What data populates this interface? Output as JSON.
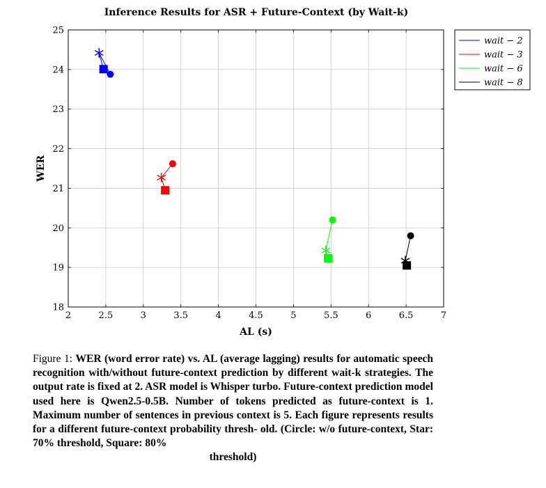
{
  "chart_data": {
    "type": "line",
    "title": "Inference Results for ASR + Future-Context (by Wait-k)",
    "xlabel": "AL (s)",
    "ylabel": "WER",
    "xlim": [
      2,
      7
    ],
    "ylim": [
      18,
      25
    ],
    "xticks": [
      "2",
      "2.5",
      "3",
      "3.5",
      "4",
      "4.5",
      "5",
      "5.5",
      "6",
      "6.5",
      "7"
    ],
    "yticks": [
      "18",
      "19",
      "20",
      "21",
      "22",
      "23",
      "24",
      "25"
    ],
    "grid": true,
    "legend_position": "outside-top-right",
    "legend_entries": [
      "wait − 2",
      "wait − 3",
      "wait − 6",
      "wait − 8"
    ],
    "series": [
      {
        "name": "wait − 2",
        "color": "#0000ff",
        "points": [
          {
            "x": 2.56,
            "y": 23.88,
            "marker": "circle"
          },
          {
            "x": 2.41,
            "y": 24.42,
            "marker": "star"
          },
          {
            "x": 2.47,
            "y": 24.01,
            "marker": "square"
          }
        ]
      },
      {
        "name": "wait − 3",
        "color": "#ff0000",
        "points": [
          {
            "x": 3.39,
            "y": 21.62,
            "marker": "circle"
          },
          {
            "x": 3.24,
            "y": 21.27,
            "marker": "star"
          },
          {
            "x": 3.29,
            "y": 20.95,
            "marker": "square"
          }
        ]
      },
      {
        "name": "wait − 6",
        "color": "#00ff00",
        "points": [
          {
            "x": 5.52,
            "y": 20.2,
            "marker": "circle"
          },
          {
            "x": 5.43,
            "y": 19.43,
            "marker": "star"
          },
          {
            "x": 5.46,
            "y": 19.23,
            "marker": "square"
          }
        ]
      },
      {
        "name": "wait − 8",
        "color": "#000000",
        "points": [
          {
            "x": 6.56,
            "y": 19.8,
            "marker": "circle"
          },
          {
            "x": 6.49,
            "y": 19.17,
            "marker": "star"
          },
          {
            "x": 6.51,
            "y": 19.05,
            "marker": "square"
          }
        ]
      }
    ]
  },
  "caption": {
    "label": "Figure 1: ",
    "text": "WER (word error rate) vs. AL (average lagging) results for automatic speech recognition with/without future-context prediction by different wait-k strategies. The output rate is fixed at 2. ASR model is Whisper turbo. Future-context prediction model used here is Qwen2.5-0.5B. Number of tokens predicted as future-context is 1. Maximum number of sentences in previous context is 5. Each figure represents results for a different future-context probability thresh- old. (Circle: w/o future-context, Star: 70% threshold, Square: 80%",
    "last_line": "threshold)"
  }
}
